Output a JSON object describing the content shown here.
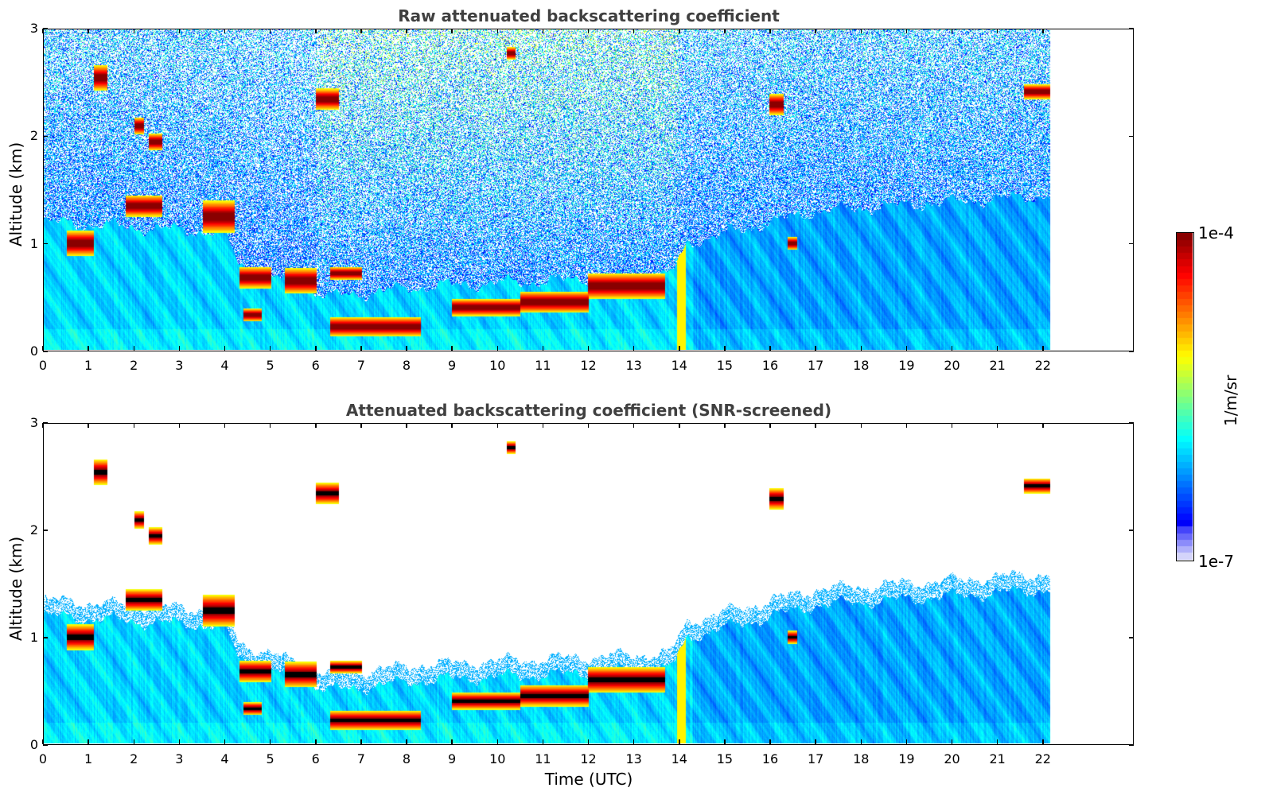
{
  "chart_data": [
    {
      "type": "heatmap",
      "id": "raw",
      "title": "Raw attenuated backscattering coefficient",
      "xlabel": "",
      "ylabel": "Altitude (km)",
      "xlim": [
        0,
        24
      ],
      "ylim": [
        0,
        3
      ],
      "data_xmax": 22.2,
      "xticks": [
        "0",
        "1",
        "2",
        "3",
        "4",
        "5",
        "6",
        "7",
        "8",
        "9",
        "10",
        "11",
        "12",
        "13",
        "14",
        "15",
        "16",
        "17",
        "18",
        "19",
        "20",
        "21",
        "22"
      ],
      "yticks": [
        "0",
        "1",
        "2",
        "3"
      ],
      "screened": false
    },
    {
      "type": "heatmap",
      "id": "screened",
      "title": "Attenuated backscattering coefficient (SNR-screened)",
      "xlabel": "Time (UTC)",
      "ylabel": "Altitude (km)",
      "xlim": [
        0,
        24
      ],
      "ylim": [
        0,
        3
      ],
      "data_xmax": 22.2,
      "xticks": [
        "0",
        "1",
        "2",
        "3",
        "4",
        "5",
        "6",
        "7",
        "8",
        "9",
        "10",
        "11",
        "12",
        "13",
        "14",
        "15",
        "16",
        "17",
        "18",
        "19",
        "20",
        "21",
        "22"
      ],
      "yticks": [
        "0",
        "1",
        "2",
        "3"
      ],
      "screened": true
    }
  ],
  "colorbar": {
    "label": "1/m/sr",
    "max_label": "1e-4",
    "min_label": "1e-7",
    "scale": "log",
    "range": [
      1e-07,
      0.0001
    ],
    "colormap": "jet"
  },
  "features": {
    "cloud_layers": [
      {
        "t0": 0.5,
        "t1": 1.1,
        "alt": 1.0,
        "thick": 0.12
      },
      {
        "t0": 1.1,
        "t1": 1.4,
        "alt": 2.55,
        "thick": 0.12
      },
      {
        "t0": 2.0,
        "t1": 2.2,
        "alt": 2.1,
        "thick": 0.08
      },
      {
        "t0": 2.3,
        "t1": 2.6,
        "alt": 1.95,
        "thick": 0.08
      },
      {
        "t0": 1.8,
        "t1": 2.6,
        "alt": 1.35,
        "thick": 0.1
      },
      {
        "t0": 3.5,
        "t1": 4.2,
        "alt": 1.25,
        "thick": 0.15
      },
      {
        "t0": 4.3,
        "t1": 5.0,
        "alt": 0.68,
        "thick": 0.1
      },
      {
        "t0": 4.4,
        "t1": 4.8,
        "alt": 0.33,
        "thick": 0.06
      },
      {
        "t0": 5.3,
        "t1": 6.0,
        "alt": 0.65,
        "thick": 0.12
      },
      {
        "t0": 6.0,
        "t1": 6.5,
        "alt": 2.35,
        "thick": 0.1
      },
      {
        "t0": 6.3,
        "t1": 8.3,
        "alt": 0.22,
        "thick": 0.09
      },
      {
        "t0": 6.3,
        "t1": 7.0,
        "alt": 0.72,
        "thick": 0.06
      },
      {
        "t0": 9.0,
        "t1": 10.5,
        "alt": 0.4,
        "thick": 0.08
      },
      {
        "t0": 10.5,
        "t1": 12.0,
        "alt": 0.45,
        "thick": 0.1
      },
      {
        "t0": 12.0,
        "t1": 13.7,
        "alt": 0.6,
        "thick": 0.12
      },
      {
        "t0": 10.2,
        "t1": 10.4,
        "alt": 2.78,
        "thick": 0.06
      },
      {
        "t0": 16.0,
        "t1": 16.3,
        "alt": 2.3,
        "thick": 0.1
      },
      {
        "t0": 16.4,
        "t1": 16.6,
        "alt": 1.0,
        "thick": 0.06
      },
      {
        "t0": 21.6,
        "t1": 22.2,
        "alt": 2.42,
        "thick": 0.07
      }
    ],
    "boundary_layer_top": [
      {
        "t": 0,
        "alt": 1.2
      },
      {
        "t": 4,
        "alt": 1.1
      },
      {
        "t": 4.3,
        "alt": 0.8
      },
      {
        "t": 6.3,
        "alt": 0.5
      },
      {
        "t": 8.5,
        "alt": 0.6
      },
      {
        "t": 13.8,
        "alt": 0.7
      },
      {
        "t": 14.2,
        "alt": 1.0
      },
      {
        "t": 17,
        "alt": 1.3
      },
      {
        "t": 22.2,
        "alt": 1.45
      }
    ]
  }
}
